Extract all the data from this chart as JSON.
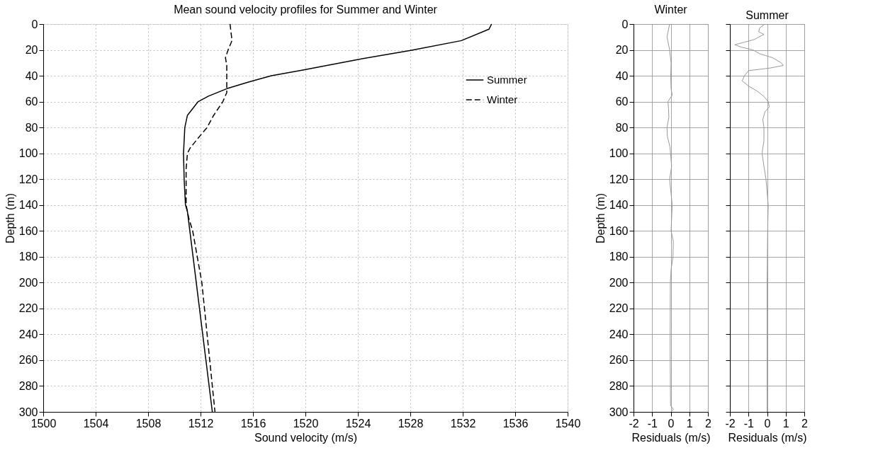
{
  "chart_data": [
    {
      "type": "line",
      "title": "Mean sound velocity profiles for Summer and Winter",
      "xlabel": "Sound velocity (m/s)",
      "ylabel": "Depth (m)",
      "xlim": [
        1500,
        1540
      ],
      "xticks": [
        1500,
        1504,
        1508,
        1512,
        1516,
        1520,
        1524,
        1528,
        1532,
        1536,
        1540
      ],
      "ylim": [
        300,
        0
      ],
      "yticks": [
        0,
        20,
        40,
        60,
        80,
        100,
        120,
        140,
        160,
        180,
        200,
        220,
        240,
        260,
        280,
        300
      ],
      "grid": true,
      "legend": "top right",
      "series": [
        {
          "name": "Summer",
          "color": "#000000",
          "line_style": "solid",
          "x": [
            1534.2,
            1534.0,
            1531.9,
            1528.1,
            1523.9,
            1519.8,
            1517.4,
            1515.6,
            1514.0,
            1512.6,
            1511.8,
            1511.0,
            1510.8,
            1510.7,
            1510.75,
            1510.85,
            1511.0,
            1512.9
          ],
          "values": [
            0,
            4,
            12.8,
            20.2,
            27.6,
            35.6,
            40,
            45,
            50,
            55.8,
            60.2,
            70.6,
            80,
            100,
            120,
            140,
            145,
            300
          ]
        },
        {
          "name": "Winter",
          "color": "#000000",
          "line_style": "dashed",
          "x": [
            1514.25,
            1514.4,
            1514.1,
            1513.9,
            1514.0,
            1514.0,
            1514.0,
            1513.7,
            1513.0,
            1512.5,
            1511.8,
            1511.2,
            1511.0,
            1510.9,
            1510.9,
            1511.1,
            1511.4,
            1512.1,
            1513.1
          ],
          "values": [
            0,
            12.8,
            20,
            26,
            32,
            40,
            53,
            60,
            70.6,
            80,
            88.4,
            96,
            100,
            112,
            140,
            150,
            160,
            200,
            300
          ]
        }
      ]
    },
    {
      "type": "line",
      "title": "Winter",
      "xlabel": "Residuals (m/s)",
      "ylabel": "Depth (m)",
      "xlim": [
        -2,
        2
      ],
      "xticks": [
        -2,
        -1,
        0,
        1,
        2
      ],
      "ylim": [
        300,
        0
      ],
      "yticks": [
        0,
        20,
        40,
        60,
        80,
        100,
        120,
        140,
        160,
        180,
        200,
        220,
        240,
        260,
        280,
        300
      ],
      "grid": true,
      "series": [
        {
          "color": "#999999",
          "x": [
            -0.06,
            -0.2,
            -0.1,
            -0.06,
            0.02,
            0.0,
            0.02,
            0.08,
            -0.15,
            -0.12,
            -0.1,
            -0.2,
            -0.18,
            -0.04,
            0.05,
            -0.06,
            0.08,
            0.05,
            0.02,
            0.14,
            0.12,
            0.02,
            -0.02,
            -0.03,
            -0.01,
            0.14,
            0.02
          ],
          "values": [
            0,
            10,
            17,
            20,
            30,
            40,
            50,
            55,
            60,
            65,
            72,
            80,
            87,
            95,
            110,
            120,
            140,
            150,
            160,
            168,
            180,
            190,
            200,
            250,
            295,
            298,
            300
          ]
        }
      ]
    },
    {
      "type": "line",
      "title": "Summer",
      "xlabel": "Residuals (m/s)",
      "xlim": [
        -2,
        2
      ],
      "xticks": [
        -2,
        -1,
        0,
        1,
        2
      ],
      "ylim": [
        300,
        0
      ],
      "yticks": [
        0,
        20,
        40,
        60,
        80,
        100,
        120,
        140,
        160,
        180,
        200,
        220,
        240,
        260,
        280,
        300
      ],
      "grid": true,
      "tick_labels": "x",
      "series": [
        {
          "color": "#999999",
          "x": [
            -0.12,
            -0.4,
            -0.45,
            -0.17,
            -0.7,
            -1.22,
            -1.74,
            -1.34,
            -0.76,
            -0.4,
            0.29,
            0.76,
            0.87,
            0.17,
            -0.99,
            -1.22,
            -1.34,
            -0.99,
            -0.52,
            -0.17,
            0.06,
            0.12,
            -0.12,
            -0.23,
            -0.17,
            -0.17,
            -0.27,
            -0.17,
            -0.06,
            0.06,
            0.03,
            0.0,
            0.0
          ],
          "values": [
            0,
            3,
            6,
            8,
            12,
            14,
            16,
            18,
            20,
            23,
            26,
            30,
            32,
            34,
            36,
            40,
            44,
            48,
            52,
            56,
            60,
            64,
            68,
            74,
            80,
            90,
            100,
            110,
            120,
            140,
            160,
            200,
            300
          ]
        }
      ]
    }
  ]
}
